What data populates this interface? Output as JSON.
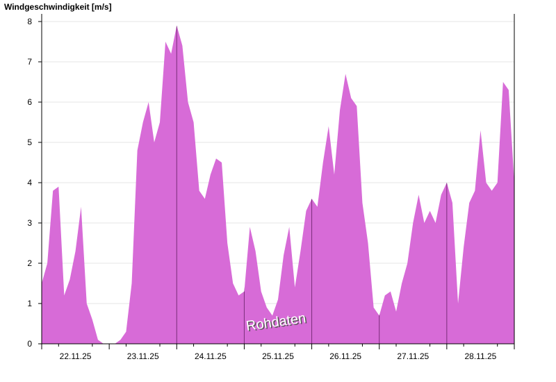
{
  "chart_data": {
    "type": "area",
    "title": "Windgeschwindigkeit [m/s]",
    "annotation": "Rohdaten",
    "color": "#d76bd7",
    "categories": [
      null,
      null,
      null,
      null,
      null,
      null,
      "22.11.25",
      null,
      null,
      null,
      null,
      null,
      null,
      null,
      null,
      null,
      null,
      null,
      "23.11.25",
      null,
      null,
      null,
      null,
      null,
      null,
      null,
      null,
      null,
      null,
      null,
      "24.11.25",
      null,
      null,
      null,
      null,
      null,
      null,
      null,
      null,
      null,
      null,
      null,
      "25.11.25",
      null,
      null,
      null,
      null,
      null,
      null,
      null,
      null,
      null,
      null,
      null,
      "26.11.25",
      null,
      null,
      null,
      null,
      null,
      null,
      null,
      null,
      null,
      null,
      null,
      "27.11.25",
      null,
      null,
      null,
      null,
      null,
      null,
      null,
      null,
      null,
      null,
      null,
      "28.11.25",
      null,
      null,
      null,
      null,
      null,
      null
    ],
    "values": [
      1.5,
      2.0,
      3.8,
      3.9,
      1.2,
      1.6,
      2.3,
      3.4,
      1.0,
      0.6,
      0.1,
      0,
      0,
      0,
      0.1,
      0.3,
      1.5,
      4.8,
      5.5,
      6.0,
      5.0,
      5.5,
      7.5,
      7.2,
      7.9,
      7.4,
      6.0,
      5.5,
      3.8,
      3.6,
      4.2,
      4.6,
      4.5,
      2.5,
      1.5,
      1.2,
      1.3,
      2.9,
      2.3,
      1.3,
      0.9,
      0.7,
      1.1,
      2.2,
      2.9,
      1.4,
      2.3,
      3.3,
      3.6,
      3.4,
      4.5,
      5.4,
      4.2,
      5.8,
      6.7,
      6.1,
      5.9,
      3.5,
      2.5,
      0.9,
      0.7,
      1.2,
      1.3,
      0.8,
      1.5,
      2.0,
      3.0,
      3.7,
      3.0,
      3.3,
      3.0,
      3.7,
      4.0,
      3.5,
      1.0,
      2.4,
      3.5,
      3.8,
      5.3,
      4.0,
      3.8,
      4.0,
      6.5,
      6.3,
      4.0
    ],
    "ylim": [
      0,
      8
    ],
    "yticks": [
      0,
      1,
      2,
      3,
      4,
      5,
      6,
      7,
      8
    ],
    "grid": true
  }
}
